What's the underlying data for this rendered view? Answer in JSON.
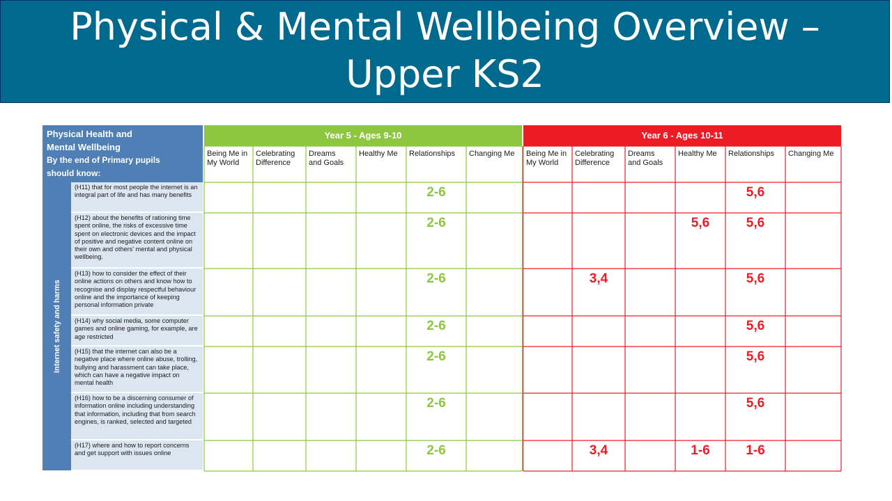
{
  "title": [
    "Physical & Mental Wellbeing Overview –",
    "Upper KS2"
  ],
  "header_left": {
    "line1": "Physical Health and",
    "line2": "Mental Wellbeing",
    "line3": "By the end of Primary pupils",
    "line4": "should know:"
  },
  "theme_label": "Internet safety and harms",
  "year5": "Year 5 - Ages 9-10",
  "year6": "Year 6 - Ages 10-11",
  "columns": [
    {
      "a": "Being Me in",
      "b": "My World"
    },
    {
      "a": "Celebrating",
      "b": "Difference"
    },
    {
      "a": "Dreams",
      "b": "and Goals"
    },
    {
      "a": "Healthy Me",
      "b": ""
    },
    {
      "a": "Relationships",
      "b": ""
    },
    {
      "a": "Changing Me",
      "b": ""
    },
    {
      "a": "Being Me in",
      "b": "My World"
    },
    {
      "a": "Celebrating",
      "b": "Difference"
    },
    {
      "a": "Dreams",
      "b": "and Goals"
    },
    {
      "a": "Healthy Me",
      "b": ""
    },
    {
      "a": "Relationships",
      "b": ""
    },
    {
      "a": "Changing Me",
      "b": ""
    }
  ],
  "rows": [
    {
      "statement": "(H11) that for most people the internet is an integral part of life and has many benefits",
      "cells": [
        "",
        "",
        "",
        "",
        "2-6",
        "",
        "",
        "",
        "",
        "",
        "5,6",
        ""
      ]
    },
    {
      "statement": "(H12) about the benefits of rationing time spent online, the risks of excessive time spent on electronic devices and the impact of positive and negative content online on their own and others' mental and physical wellbeing.",
      "cells": [
        "",
        "",
        "",
        "",
        "2-6",
        "",
        "",
        "",
        "",
        "5,6",
        "5,6",
        ""
      ]
    },
    {
      "statement": "(H13) how to consider the effect of their online actions on others and know how to recognise and display respectful behaviour online and the importance of keeping personal information private",
      "cells": [
        "",
        "",
        "",
        "",
        "2-6",
        "",
        "",
        "3,4",
        "",
        "",
        "5,6",
        ""
      ]
    },
    {
      "statement": "(H14) why social media, some computer games and online gaming, for example, are age restricted",
      "cells": [
        "",
        "",
        "",
        "",
        "2-6",
        "",
        "",
        "",
        "",
        "",
        "5,6",
        ""
      ]
    },
    {
      "statement": "(H15) that the internet can also be a negative place where online abuse, trolling, bullying and harassment can take place, which can have a negative impact on mental health",
      "cells": [
        "",
        "",
        "",
        "",
        "2-6",
        "",
        "",
        "",
        "",
        "",
        "5,6",
        ""
      ]
    },
    {
      "statement": "(H16) how to be a discerning consumer of information online including understanding that information, including that from search engines, is ranked, selected and targeted",
      "cells": [
        "",
        "",
        "",
        "",
        "2-6",
        "",
        "",
        "",
        "",
        "",
        "5,6",
        ""
      ]
    },
    {
      "statement": "(H17) where and how to report concerns and get support with issues online",
      "cells": [
        "",
        "",
        "",
        "",
        "2-6",
        "",
        "",
        "3,4",
        "",
        "1-6",
        "1-6",
        ""
      ]
    }
  ],
  "colors": {
    "banner": "#006a8e",
    "header_blue": "#4f7fb5",
    "statement_bg": "#dce6f1",
    "year5": "#8dc63f",
    "year6": "#ed1c24"
  }
}
